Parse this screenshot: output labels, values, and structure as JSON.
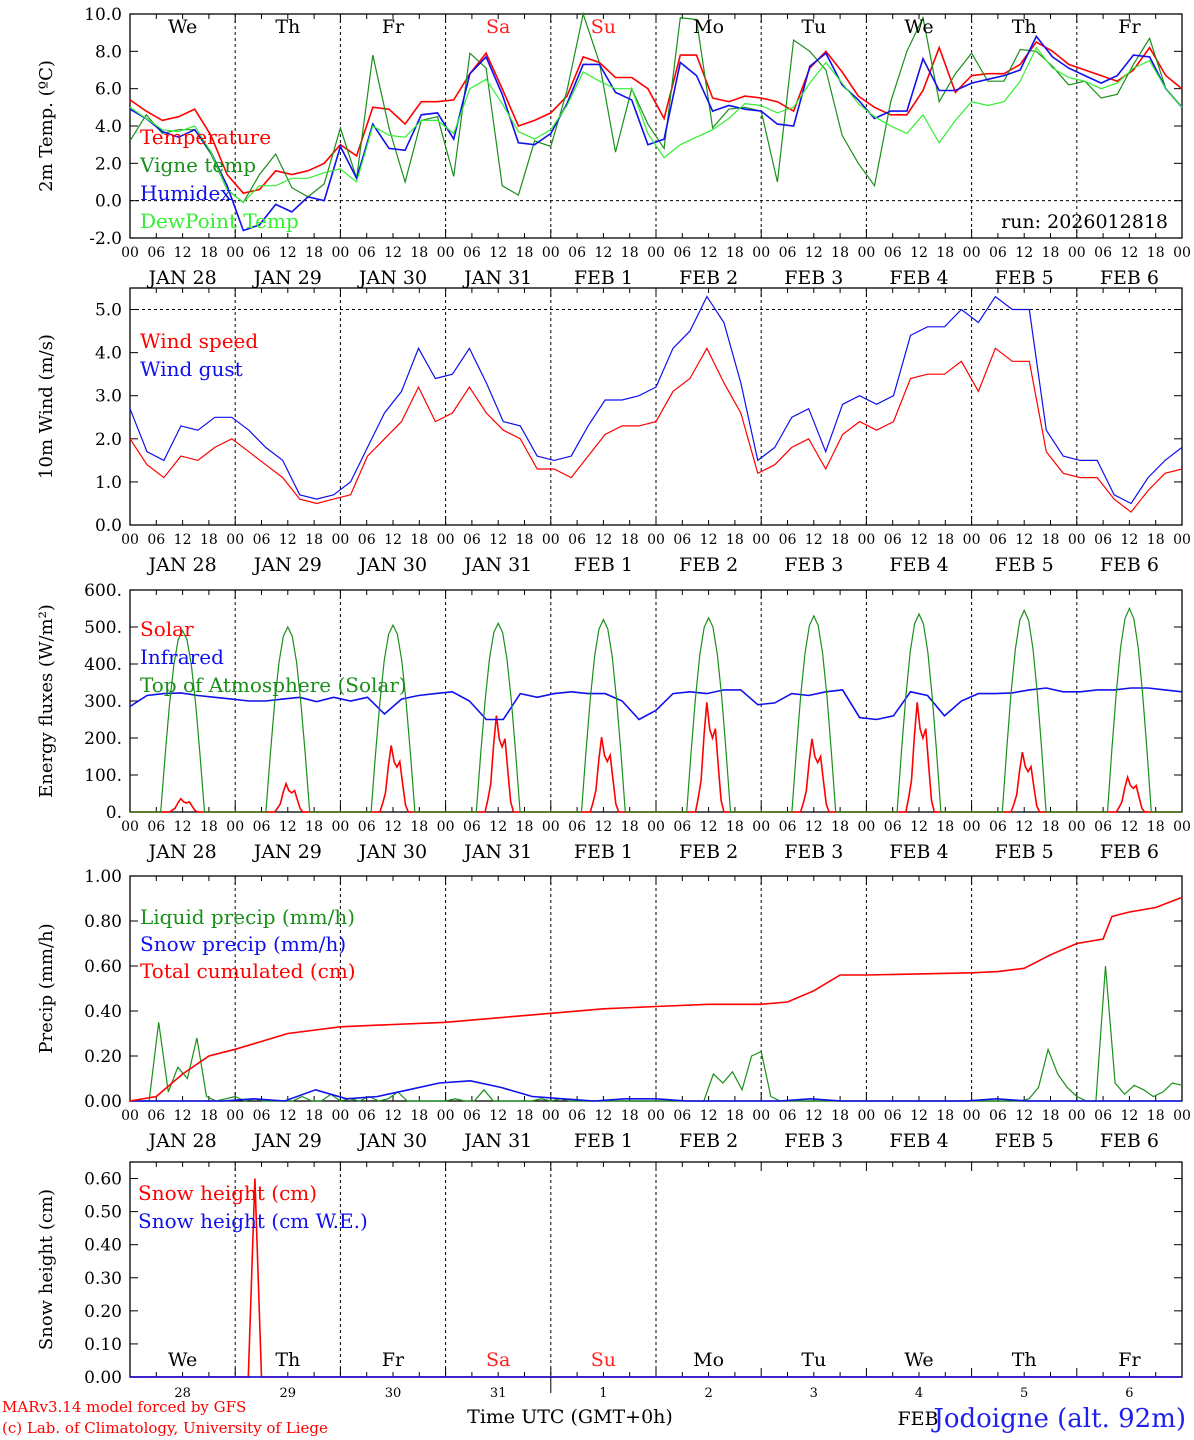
{
  "footer": {
    "model": "MARv3.14 model forced by GFS",
    "lab": "(c) Lab. of Climatology, University of Liege",
    "xlabel": "Time UTC (GMT+0h)",
    "station": "Jodoigne (alt. 92m)",
    "month": "FEB"
  },
  "colors": {
    "red": "#ff0000",
    "green": "#1a8f1a",
    "blue": "#1010ee",
    "lightgreen": "#33ee33",
    "weekend": "#ff2020",
    "axis": "#000000"
  },
  "days": [
    "We",
    "Th",
    "Fr",
    "Sa",
    "Su",
    "Mo",
    "Tu",
    "We",
    "Th",
    "Fr"
  ],
  "weekend_days": [
    3,
    4
  ],
  "hour_ticks": [
    "00",
    "06",
    "12",
    "18"
  ],
  "date_labels": [
    "JAN 28",
    "JAN 29",
    "JAN 30",
    "JAN 31",
    "FEB  1",
    "FEB  2",
    "FEB  3",
    "FEB  4",
    "FEB  5",
    "FEB  6"
  ],
  "day_numbers": [
    "28",
    "29",
    "30",
    "31",
    "1",
    "2",
    "3",
    "4",
    "5",
    "6"
  ],
  "chart_data": [
    {
      "type": "line",
      "id": "temp",
      "ylabel": "2m Temp. (ºC)",
      "ylim": [
        -2.0,
        10.0
      ],
      "yticks": [
        "-2.0",
        "0.0",
        "2.0",
        "4.0",
        "6.0",
        "8.0",
        "10.0"
      ],
      "run_label": "run: 2026012818",
      "x_hours": [
        0,
        3,
        6,
        9,
        12,
        15,
        18,
        21,
        24,
        27,
        30,
        33,
        36,
        39,
        42,
        45,
        48,
        51,
        54,
        57,
        60,
        63,
        66,
        69,
        72,
        75,
        78,
        81,
        84,
        87,
        90,
        93,
        96,
        99,
        102,
        105,
        108,
        111,
        114,
        117,
        120,
        123,
        126,
        129,
        132,
        135,
        138,
        141,
        144,
        147,
        150,
        153,
        156,
        159,
        162,
        165,
        168,
        171,
        174,
        177,
        180,
        183,
        186,
        189,
        192,
        195,
        198,
        201,
        204,
        207,
        210,
        213,
        216,
        219,
        222,
        225,
        228,
        231,
        234,
        237,
        240
      ],
      "series": [
        {
          "name": "Temperature",
          "color": "red",
          "values": [
            5.4,
            4.8,
            4.3,
            4.5,
            4.9,
            3.5,
            1.4,
            0.4,
            0.6,
            1.6,
            1.4,
            1.6,
            2.0,
            3.0,
            2.4,
            5.0,
            4.9,
            4.1,
            5.3,
            5.3,
            5.4,
            6.8,
            7.9,
            6.0,
            4.0,
            4.3,
            4.7,
            5.6,
            7.7,
            7.4,
            6.6,
            6.6,
            6.0,
            4.4,
            7.8,
            7.8,
            5.5,
            5.3,
            5.6,
            5.5,
            5.3,
            4.8,
            7.1,
            8.0,
            6.9,
            5.6,
            5.0,
            4.6,
            4.6,
            5.9,
            8.2,
            5.8,
            6.7,
            6.8,
            6.8,
            7.3,
            8.5,
            8.0,
            7.3,
            7.0,
            6.7,
            6.4,
            7.0,
            8.2,
            6.7,
            6.0
          ]
        },
        {
          "name": "Vigne temp",
          "color": "green",
          "values": [
            3.2,
            4.6,
            3.6,
            3.8,
            3.8,
            2.5,
            0.6,
            -0.1,
            1.4,
            2.5,
            0.7,
            0.2,
            0.9,
            3.9,
            1.2,
            7.8,
            3.9,
            1.0,
            4.3,
            4.5,
            1.3,
            7.9,
            7.1,
            0.8,
            0.3,
            3.2,
            2.9,
            5.9,
            10.0,
            7.4,
            2.6,
            6.0,
            4.1,
            2.8,
            9.8,
            9.7,
            3.9,
            4.9,
            5.0,
            4.8,
            1.0,
            8.6,
            8.0,
            7.0,
            3.5,
            2.0,
            0.8,
            5.3,
            8.0,
            9.8,
            5.3,
            6.8,
            7.9,
            6.4,
            6.4,
            8.1,
            8.0,
            7.2,
            6.2,
            6.4,
            5.5,
            5.7,
            7.3,
            8.7,
            6.0,
            5.0
          ]
        },
        {
          "name": "Humidex",
          "color": "blue",
          "values": [
            4.9,
            4.4,
            3.7,
            3.4,
            3.8,
            2.6,
            0.8,
            -1.6,
            -1.3,
            -0.2,
            -0.6,
            0.2,
            0.0,
            2.9,
            1.2,
            4.1,
            2.8,
            2.7,
            4.6,
            4.7,
            3.3,
            6.8,
            7.7,
            5.7,
            3.1,
            3.0,
            3.6,
            5.2,
            7.3,
            7.3,
            5.8,
            5.4,
            3.0,
            3.3,
            7.4,
            6.7,
            4.8,
            5.1,
            4.9,
            4.8,
            4.1,
            4.0,
            7.2,
            7.9,
            6.2,
            5.4,
            4.4,
            4.8,
            4.8,
            7.6,
            5.9,
            5.9,
            6.3,
            6.5,
            6.7,
            7.0,
            8.8,
            7.7,
            7.1,
            6.7,
            6.3,
            6.7,
            7.8,
            7.7,
            6.0,
            5.0
          ]
        },
        {
          "name": "DewPoint Temp",
          "color": "lightgreen",
          "values": [
            5.0,
            4.4,
            3.8,
            3.7,
            4.0,
            2.6,
            0.6,
            -0.1,
            0.8,
            0.8,
            1.2,
            1.2,
            1.5,
            1.7,
            1.0,
            4.0,
            3.5,
            3.4,
            4.3,
            4.3,
            3.6,
            6.0,
            6.5,
            5.2,
            3.7,
            3.3,
            3.8,
            5.1,
            6.9,
            6.4,
            6.0,
            6.0,
            3.6,
            2.3,
            3.0,
            3.4,
            3.8,
            4.4,
            5.2,
            5.1,
            4.7,
            5.0,
            6.3,
            7.4,
            6.3,
            5.2,
            4.5,
            4.0,
            3.6,
            4.6,
            3.1,
            4.3,
            5.3,
            5.1,
            5.3,
            6.4,
            8.2,
            7.1,
            6.6,
            6.4,
            6.0,
            6.3,
            7.1,
            7.5,
            6.0,
            5.0
          ]
        }
      ]
    },
    {
      "type": "line",
      "id": "wind",
      "ylabel": "10m Wind (m/s)",
      "ylim": [
        0.0,
        5.5
      ],
      "yticks": [
        "0.0",
        "1.0",
        "2.0",
        "3.0",
        "4.0",
        "5.0"
      ],
      "series": [
        {
          "name": "Wind speed",
          "color": "red",
          "values": [
            2.0,
            1.4,
            1.1,
            1.6,
            1.5,
            1.8,
            2.0,
            1.7,
            1.4,
            1.1,
            0.6,
            0.5,
            0.6,
            0.7,
            1.6,
            2.0,
            2.4,
            3.2,
            2.4,
            2.6,
            3.2,
            2.6,
            2.2,
            2.0,
            1.3,
            1.3,
            1.1,
            1.6,
            2.1,
            2.3,
            2.3,
            2.4,
            3.1,
            3.4,
            4.1,
            3.3,
            2.6,
            1.2,
            1.4,
            1.8,
            2.0,
            1.3,
            2.1,
            2.4,
            2.2,
            2.4,
            3.4,
            3.5,
            3.5,
            3.8,
            3.1,
            4.1,
            3.8,
            3.8,
            1.7,
            1.2,
            1.1,
            1.1,
            0.6,
            0.3,
            0.8,
            1.2,
            1.3
          ]
        },
        {
          "name": "Wind gust",
          "color": "blue",
          "values": [
            2.7,
            1.7,
            1.5,
            2.3,
            2.2,
            2.5,
            2.5,
            2.2,
            1.8,
            1.5,
            0.7,
            0.6,
            0.7,
            1.0,
            1.8,
            2.6,
            3.1,
            4.1,
            3.4,
            3.5,
            4.1,
            3.3,
            2.4,
            2.3,
            1.6,
            1.5,
            1.6,
            2.3,
            2.9,
            2.9,
            3.0,
            3.2,
            4.1,
            4.5,
            5.3,
            4.7,
            3.3,
            1.5,
            1.8,
            2.5,
            2.7,
            1.7,
            2.8,
            3.0,
            2.8,
            3.0,
            4.4,
            4.6,
            4.6,
            5.0,
            4.7,
            5.3,
            5.0,
            5.0,
            2.2,
            1.6,
            1.5,
            1.5,
            0.7,
            0.5,
            1.1,
            1.5,
            1.8
          ]
        }
      ]
    },
    {
      "type": "line",
      "id": "energy",
      "ylabel": "Energy fluxes (W/m²)",
      "ylim": [
        0,
        600
      ],
      "yticks": [
        "0.",
        "100.",
        "200.",
        "300.",
        "400.",
        "500.",
        "600."
      ],
      "series": [
        {
          "name": "Solar",
          "color": "red",
          "day_peaks": [
            40,
            85,
            200,
            290,
            225,
            330,
            220,
            330,
            180,
            105
          ]
        },
        {
          "name": "Infrared",
          "color": "blue",
          "values": [
            285,
            315,
            320,
            322,
            315,
            310,
            305,
            300,
            300,
            305,
            310,
            298,
            310,
            300,
            310,
            265,
            305,
            315,
            320,
            325,
            300,
            250,
            250,
            320,
            310,
            320,
            325,
            320,
            320,
            300,
            250,
            275,
            320,
            325,
            320,
            330,
            330,
            290,
            295,
            320,
            315,
            325,
            330,
            255,
            250,
            260,
            325,
            315,
            260,
            300,
            320,
            320,
            322,
            330,
            335,
            325,
            325,
            330,
            330,
            335,
            335,
            330,
            325
          ]
        },
        {
          "name": "Top of Atmosphere (Solar)",
          "color": "green",
          "day_peaks": [
            490,
            500,
            505,
            510,
            520,
            525,
            530,
            535,
            545,
            550
          ]
        }
      ]
    },
    {
      "type": "line",
      "id": "precip",
      "ylabel": "Precip (mm/h)",
      "ylim": [
        0.0,
        1.0
      ],
      "yticks": [
        "0.00",
        "0.20",
        "0.40",
        "0.60",
        "0.80",
        "1.00"
      ],
      "series": [
        {
          "name": "Liquid precip (mm/h)",
          "color": "green",
          "values": [
            0,
            0,
            0,
            0.35,
            0.04,
            0.15,
            0.1,
            0.28,
            0.02,
            0,
            0.01,
            0.02,
            0,
            0.01,
            0,
            0,
            0,
            0,
            0.02,
            0,
            0,
            0.03,
            0,
            0.01,
            0,
            0.02,
            0,
            0.01,
            0.04,
            0,
            0,
            0,
            0,
            0,
            0.01,
            0,
            0,
            0.05,
            0,
            0,
            0,
            0,
            0,
            0.01,
            0,
            0.01,
            0,
            0,
            0,
            0,
            0,
            0,
            0,
            0,
            0,
            0,
            0,
            0,
            0,
            0,
            0,
            0.12,
            0.08,
            0.13,
            0.05,
            0.2,
            0.22,
            0.02,
            0,
            0,
            0,
            0,
            0,
            0,
            0,
            0,
            0,
            0,
            0,
            0,
            0,
            0,
            0,
            0,
            0,
            0,
            0,
            0,
            0,
            0,
            0,
            0,
            0,
            0,
            0.01,
            0.06,
            0.23,
            0.12,
            0.06,
            0.02,
            0,
            0,
            0.6,
            0.08,
            0.03,
            0.07,
            0.05,
            0.02,
            0.04,
            0.08,
            0.07
          ]
        },
        {
          "name": "Snow precip (mm/h)",
          "color": "blue",
          "values": [
            0,
            0,
            0,
            0,
            0.01,
            0,
            0.05,
            0.01,
            0.02,
            0.05,
            0.08,
            0.09,
            0.06,
            0.02,
            0.01,
            0,
            0.01,
            0.01,
            0,
            0,
            0,
            0,
            0.01,
            0,
            0,
            0,
            0,
            0,
            0.01,
            0,
            0,
            0,
            0,
            0,
            0
          ]
        },
        {
          "name": "Total cumulated (cm)",
          "color": "red",
          "cum_points": [
            [
              0,
              0
            ],
            [
              6,
              0.02
            ],
            [
              12,
              0.12
            ],
            [
              18,
              0.2
            ],
            [
              24,
              0.23
            ],
            [
              36,
              0.3
            ],
            [
              48,
              0.33
            ],
            [
              60,
              0.34
            ],
            [
              72,
              0.35
            ],
            [
              84,
              0.37
            ],
            [
              96,
              0.39
            ],
            [
              108,
              0.41
            ],
            [
              120,
              0.42
            ],
            [
              132,
              0.43
            ],
            [
              144,
              0.43
            ],
            [
              150,
              0.44
            ],
            [
              156,
              0.49
            ],
            [
              162,
              0.56
            ],
            [
              168,
              0.56
            ],
            [
              180,
              0.565
            ],
            [
              192,
              0.57
            ],
            [
              198,
              0.575
            ],
            [
              204,
              0.59
            ],
            [
              210,
              0.65
            ],
            [
              216,
              0.7
            ],
            [
              222,
              0.72
            ],
            [
              224,
              0.82
            ],
            [
              228,
              0.84
            ],
            [
              234,
              0.86
            ],
            [
              240,
              0.905
            ]
          ]
        }
      ]
    },
    {
      "type": "line",
      "id": "snow",
      "ylabel": "Snow height (cm)",
      "ylim": [
        0.0,
        0.65
      ],
      "yticks": [
        "0.00",
        "0.10",
        "0.20",
        "0.30",
        "0.40",
        "0.50",
        "0.60"
      ],
      "series": [
        {
          "name": "Snow height (cm)",
          "color": "red",
          "points": [
            [
              0,
              0
            ],
            [
              27,
              0
            ],
            [
              28.5,
              0.6
            ],
            [
              30,
              0
            ],
            [
              240,
              0
            ]
          ]
        },
        {
          "name": "Snow height (cm W.E.)",
          "color": "blue",
          "points": [
            [
              0,
              0
            ],
            [
              240,
              0
            ]
          ]
        }
      ]
    }
  ]
}
